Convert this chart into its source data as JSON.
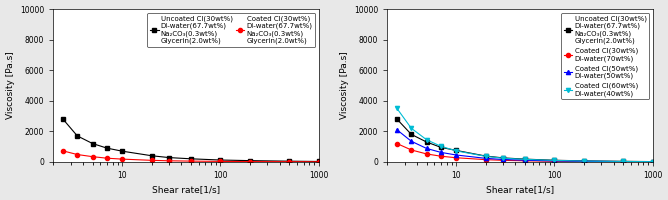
{
  "left": {
    "xlabel": "Shear rate[1/s]",
    "ylabel": "Viscosity [Pa.s]",
    "ylim": [
      0,
      10000
    ],
    "yticks": [
      0,
      2000,
      4000,
      6000,
      8000,
      10000
    ],
    "xlim": [
      2,
      1000
    ],
    "series": [
      {
        "label_line1": "Uncoated Cl(30wt%)",
        "label_rest": "DI-water(67.7wt%)\nNa₂CO₃(0.3wt%)\nGlycerin(2.0wt%)",
        "color": "black",
        "marker": "s",
        "x": [
          2.5,
          3.5,
          5,
          7,
          10,
          20,
          30,
          50,
          100,
          200,
          500,
          1000
        ],
        "y": [
          2800,
          1700,
          1200,
          900,
          700,
          400,
          280,
          200,
          120,
          80,
          45,
          25
        ]
      },
      {
        "label_line1": "Coated Cl(30wt%)",
        "label_rest": "DI-water(67.7wt%)\nNa₂CO₃(0.3wt%)\nGlycerin(2.0wt%)",
        "color": "red",
        "marker": "o",
        "x": [
          2.5,
          3.5,
          5,
          7,
          10,
          20,
          30,
          50,
          100,
          200,
          500,
          1000
        ],
        "y": [
          720,
          480,
          340,
          240,
          180,
          100,
          70,
          50,
          30,
          18,
          10,
          6
        ]
      }
    ]
  },
  "right": {
    "xlabel": "Shear rate[1/s]",
    "ylabel": "Viscosity [Pa.s]",
    "ylim": [
      0,
      10000
    ],
    "yticks": [
      0,
      2000,
      4000,
      6000,
      8000,
      10000
    ],
    "xlim": [
      2,
      1000
    ],
    "series": [
      {
        "label_line1": "Uncoated Cl(30wt%)",
        "label_rest": "DI-water(67.7wt%)\nNa₂CO₃(0.3wt%)\nGlycerin(2.0wt%)",
        "color": "black",
        "marker": "s",
        "x": [
          2.5,
          3.5,
          5,
          7,
          10,
          20,
          30,
          50,
          100,
          200,
          500,
          1000
        ],
        "y": [
          2800,
          1800,
          1300,
          950,
          750,
          380,
          260,
          180,
          105,
          65,
          35,
          18
        ]
      },
      {
        "label_line1": "Coated Cl(30wt%)",
        "label_rest": "DI-water(70wt%)",
        "color": "red",
        "marker": "o",
        "x": [
          2.5,
          3.5,
          5,
          7,
          10,
          20,
          30,
          50,
          100,
          200,
          500,
          1000
        ],
        "y": [
          1200,
          780,
          520,
          370,
          270,
          145,
          100,
          70,
          40,
          22,
          12,
          7
        ]
      },
      {
        "label_line1": "Coated Cl(50wt%)",
        "label_rest": "DI-water(50wt%)",
        "color": "blue",
        "marker": "^",
        "x": [
          2.5,
          3.5,
          5,
          7,
          10,
          20,
          30,
          50,
          100,
          200,
          500,
          1000
        ],
        "y": [
          2100,
          1350,
          880,
          620,
          450,
          230,
          155,
          108,
          62,
          35,
          18,
          10
        ]
      },
      {
        "label_line1": "Coated Cl(60wt%)",
        "label_rest": "DI-water(40wt%)",
        "color": "#00bcd4",
        "marker": "v",
        "x": [
          2.5,
          3.5,
          5,
          7,
          10,
          20,
          30,
          50,
          100,
          200,
          500,
          1000
        ],
        "y": [
          3500,
          2200,
          1450,
          1020,
          720,
          360,
          240,
          165,
          95,
          52,
          27,
          14
        ]
      }
    ]
  },
  "bg_color": "#e8e8e8",
  "plot_bg": "#ffffff",
  "legend_fontsize": 5.0,
  "axis_fontsize": 6.5,
  "tick_fontsize": 5.5,
  "linewidth": 0.8,
  "markersize": 3.0
}
